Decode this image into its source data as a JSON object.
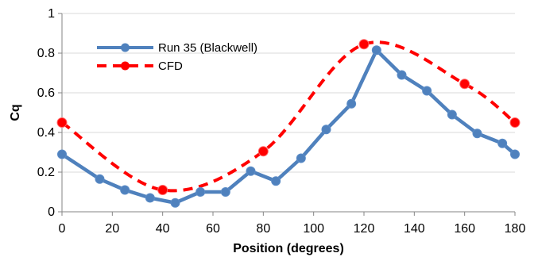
{
  "chart_data": {
    "type": "line",
    "title": "",
    "xlabel": "Position (degrees)",
    "ylabel": "Cq",
    "xlim": [
      0,
      180
    ],
    "ylim": [
      0,
      1
    ],
    "x_ticks": [
      0,
      20,
      40,
      60,
      80,
      100,
      120,
      140,
      160,
      180
    ],
    "y_ticks": [
      0,
      0.2,
      0.4,
      0.6,
      0.8,
      1
    ],
    "y_tick_labels": [
      "0",
      "0.2",
      "0.4",
      "0.6",
      "0.8",
      "1"
    ],
    "grid": "horizontal",
    "legend_position": "top-left",
    "series": [
      {
        "name": "Run 35 (Blackwell)",
        "color": "#4F81BD",
        "line_style": "solid",
        "marker": "circle",
        "x": [
          0,
          15,
          25,
          35,
          45,
          55,
          65,
          75,
          85,
          95,
          105,
          115,
          125,
          135,
          145,
          155,
          165,
          175,
          180
        ],
        "y": [
          0.29,
          0.165,
          0.11,
          0.07,
          0.045,
          0.1,
          0.1,
          0.205,
          0.155,
          0.27,
          0.415,
          0.545,
          0.815,
          0.69,
          0.61,
          0.49,
          0.395,
          0.345,
          0.29
        ]
      },
      {
        "name": "CFD",
        "color": "#FF0000",
        "line_style": "dashed",
        "marker": "circle",
        "smooth": true,
        "x": [
          0,
          40,
          80,
          120,
          160,
          180
        ],
        "y": [
          0.45,
          0.11,
          0.305,
          0.845,
          0.645,
          0.45
        ]
      }
    ]
  }
}
